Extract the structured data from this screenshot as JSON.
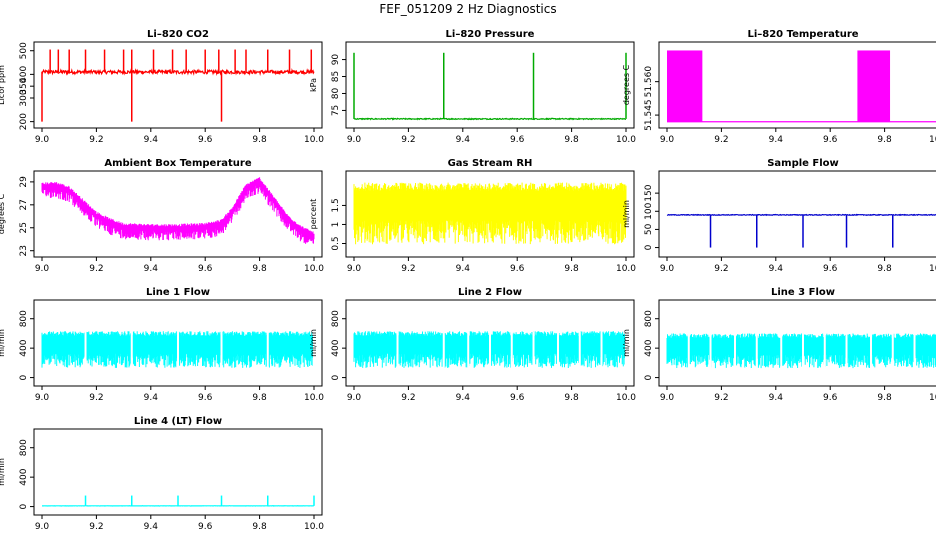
{
  "page": {
    "title": "FEF_051209  2 Hz Diagnostics"
  },
  "chart_data": [
    {
      "type": "line",
      "title": "Li–820 CO2",
      "xlabel": "",
      "ylabel": "Licor ppm",
      "xlim": [
        9.0,
        10.0
      ],
      "ylim": [
        190,
        520
      ],
      "color": "#ff0000",
      "xticks": [
        9.0,
        9.2,
        9.4,
        9.6,
        9.8,
        10.0
      ],
      "yticks": [
        200,
        300,
        350,
        400,
        500
      ],
      "series": [
        {
          "baseline": 410,
          "noise": 15,
          "spikes_up": [
            9.03,
            9.06,
            9.1,
            9.16,
            9.23,
            9.3,
            9.33,
            9.41,
            9.48,
            9.53,
            9.6,
            9.65,
            9.71,
            9.75,
            9.83,
            9.91,
            9.99
          ],
          "spike_up_to": 505,
          "spikes_down": [
            9.0,
            9.33,
            9.66
          ],
          "spike_down_to": 200
        }
      ]
    },
    {
      "type": "line",
      "title": "Li–820 Pressure",
      "xlabel": "",
      "ylabel": "kPa",
      "xlim": [
        9.0,
        10.0
      ],
      "ylim": [
        71,
        94
      ],
      "color": "#00aa00",
      "xticks": [
        9.0,
        9.2,
        9.4,
        9.6,
        9.8,
        10.0
      ],
      "yticks": [
        75,
        80,
        85,
        90
      ],
      "series": [
        {
          "baseline": 72.5,
          "noise": 0.3,
          "spikes_up": [
            9.0,
            9.33,
            9.66,
            10.0
          ],
          "spike_up_to": 92,
          "spikes_down": [],
          "spike_down_to": 72
        }
      ]
    },
    {
      "type": "area",
      "title": "Li–820 Temperature",
      "xlabel": "",
      "ylabel": "degrees C",
      "xlim": [
        9.0,
        10.0
      ],
      "ylim": [
        51.541,
        51.576
      ],
      "color": "#ff00ff",
      "xticks": [
        9.0,
        9.2,
        9.4,
        9.6,
        9.8,
        10.0
      ],
      "yticks": [
        "51.545",
        "51.560"
      ],
      "series": [
        {
          "baseline": 51.542,
          "high": 51.574,
          "blocks": [
            [
              9.0,
              9.13
            ],
            [
              9.7,
              9.82
            ]
          ]
        }
      ]
    },
    {
      "type": "line",
      "title": "Ambient Box Temperature",
      "xlabel": "",
      "ylabel": "degrees C",
      "xlim": [
        9.0,
        10.0
      ],
      "ylim": [
        22.8,
        29.6
      ],
      "color": "#ff00ff",
      "xticks": [
        9.0,
        9.2,
        9.4,
        9.6,
        9.8,
        10.0
      ],
      "yticks": [
        23,
        25,
        27,
        29
      ],
      "series": [
        {
          "x": [
            9.0,
            9.05,
            9.1,
            9.15,
            9.2,
            9.25,
            9.3,
            9.4,
            9.5,
            9.6,
            9.66,
            9.7,
            9.75,
            9.8,
            9.85,
            9.9,
            9.95,
            10.0
          ],
          "y": [
            28.7,
            28.8,
            28.4,
            27.3,
            26.2,
            25.6,
            25.2,
            25.1,
            25.1,
            25.2,
            25.5,
            26.6,
            28.6,
            29.2,
            27.6,
            26.0,
            25.0,
            24.4
          ],
          "noise": 1.2
        }
      ]
    },
    {
      "type": "line",
      "title": "Gas Stream RH",
      "xlabel": "",
      "ylabel": "percent",
      "xlim": [
        9.0,
        10.0
      ],
      "ylim": [
        0.25,
        2.3
      ],
      "color": "#ffff00",
      "xticks": [
        9.0,
        9.2,
        9.4,
        9.6,
        9.8,
        10.0
      ],
      "yticks": [
        0.5,
        1.0,
        1.5
      ],
      "series": [
        {
          "low": 0.3,
          "high": 2.1
        }
      ]
    },
    {
      "type": "line",
      "title": "Sample Flow",
      "xlabel": "",
      "ylabel": "ml/min",
      "xlim": [
        9.0,
        10.0
      ],
      "ylim": [
        -15,
        200
      ],
      "color": "#0000cc",
      "xticks": [
        9.0,
        9.2,
        9.4,
        9.6,
        9.8,
        10.0
      ],
      "yticks": [
        0,
        50,
        100,
        150
      ],
      "series": [
        {
          "baseline": 90,
          "noise": 2,
          "spikes_down": [
            9.16,
            9.33,
            9.5,
            9.66,
            9.83,
            10.0
          ],
          "spike_down_to": 0
        }
      ]
    },
    {
      "type": "line",
      "title": "Line 1 Flow",
      "xlabel": "",
      "ylabel": "ml/min",
      "xlim": [
        9.0,
        10.0
      ],
      "ylim": [
        -60,
        1000
      ],
      "color": "#00ffff",
      "xticks": [
        9.0,
        9.2,
        9.4,
        9.6,
        9.8,
        10.0
      ],
      "yticks": [
        0,
        400,
        800
      ],
      "series": [
        {
          "low": 75,
          "high": 630,
          "gaps": [
            9.16,
            9.33,
            9.5,
            9.66,
            9.83,
            10.0
          ]
        }
      ]
    },
    {
      "type": "line",
      "title": "Line 2 Flow",
      "xlabel": "",
      "ylabel": "ml/min",
      "xlim": [
        9.0,
        10.0
      ],
      "ylim": [
        -60,
        1000
      ],
      "color": "#00ffff",
      "xticks": [
        9.0,
        9.2,
        9.4,
        9.6,
        9.8,
        10.0
      ],
      "yticks": [
        0,
        400,
        800
      ],
      "series": [
        {
          "low": 75,
          "high": 630,
          "gaps": [
            9.16,
            9.33,
            9.42,
            9.5,
            9.58,
            9.66,
            9.75,
            9.83,
            9.91,
            10.0
          ]
        }
      ]
    },
    {
      "type": "line",
      "title": "Line 3 Flow",
      "xlabel": "",
      "ylabel": "ml/min",
      "xlim": [
        9.0,
        10.0
      ],
      "ylim": [
        -60,
        1000
      ],
      "color": "#00ffff",
      "xticks": [
        9.0,
        9.2,
        9.4,
        9.6,
        9.8,
        10.0
      ],
      "yticks": [
        0,
        400,
        800
      ],
      "series": [
        {
          "low": 75,
          "high": 600,
          "gaps": [
            9.08,
            9.16,
            9.25,
            9.33,
            9.42,
            9.5,
            9.58,
            9.66,
            9.75,
            9.83,
            9.91,
            10.0
          ]
        }
      ]
    },
    {
      "type": "line",
      "title": "Line 4 (LT) Flow",
      "xlabel": "",
      "ylabel": "ml/min",
      "xlim": [
        9.0,
        10.0
      ],
      "ylim": [
        -60,
        1000
      ],
      "color": "#00ffff",
      "xticks": [
        9.0,
        9.2,
        9.4,
        9.6,
        9.8,
        10.0
      ],
      "yticks": [
        0,
        400,
        800
      ],
      "series": [
        {
          "baseline": 10,
          "noise": 3,
          "spikes_up": [
            9.16,
            9.33,
            9.5,
            9.66,
            9.83,
            10.0
          ],
          "spike_up_to": 150,
          "spikes_down": [],
          "spike_down_to": 0
        }
      ]
    }
  ]
}
